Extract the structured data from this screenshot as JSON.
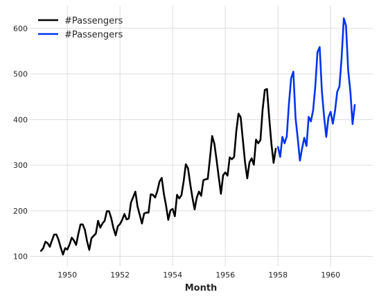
{
  "chart_data": {
    "type": "line",
    "xlabel": "Month",
    "ylabel": "",
    "title": "",
    "xlim": [
      1948.6,
      1961.6
    ],
    "ylim": [
      78,
      650
    ],
    "x_ticks": [
      1950,
      1952,
      1954,
      1956,
      1958,
      1960
    ],
    "x_tick_labels": [
      "1950",
      "1952",
      "1954",
      "1956",
      "1958",
      "1960"
    ],
    "y_ticks": [
      100,
      200,
      300,
      400,
      500,
      600
    ],
    "y_tick_labels": [
      "100",
      "200",
      "300",
      "400",
      "500",
      "600"
    ],
    "grid": true,
    "legend_position": "top-left",
    "series": [
      {
        "name": "#Passengers",
        "color": "#000000",
        "start_year": 1949,
        "values": [
          112,
          118,
          132,
          129,
          121,
          135,
          148,
          148,
          136,
          119,
          104,
          118,
          115,
          126,
          141,
          135,
          125,
          149,
          170,
          170,
          158,
          133,
          114,
          140,
          145,
          150,
          178,
          163,
          172,
          178,
          199,
          199,
          184,
          162,
          146,
          166,
          171,
          180,
          193,
          181,
          183,
          218,
          230,
          242,
          209,
          191,
          172,
          194,
          196,
          196,
          236,
          235,
          229,
          243,
          264,
          272,
          237,
          211,
          180,
          201,
          204,
          188,
          235,
          227,
          234,
          264,
          302,
          293,
          259,
          229,
          203,
          229,
          242,
          233,
          267,
          269,
          270,
          315,
          364,
          347,
          312,
          274,
          237,
          278,
          284,
          277,
          317,
          313,
          318,
          374,
          413,
          405,
          355,
          306,
          271,
          306,
          315,
          301,
          356,
          348,
          355,
          422,
          465,
          467,
          404,
          347,
          305,
          336
        ]
      },
      {
        "name": "#Passengers",
        "color": "#0033ee",
        "start_year": 1958,
        "values": [
          340,
          318,
          362,
          348,
          363,
          435,
          491,
          505,
          404,
          359,
          310,
          337,
          360,
          342,
          406,
          396,
          420,
          472,
          548,
          559,
          463,
          407,
          362,
          405,
          417,
          391,
          419,
          461,
          472,
          535,
          622,
          606,
          508,
          461,
          390,
          432
        ]
      }
    ]
  }
}
